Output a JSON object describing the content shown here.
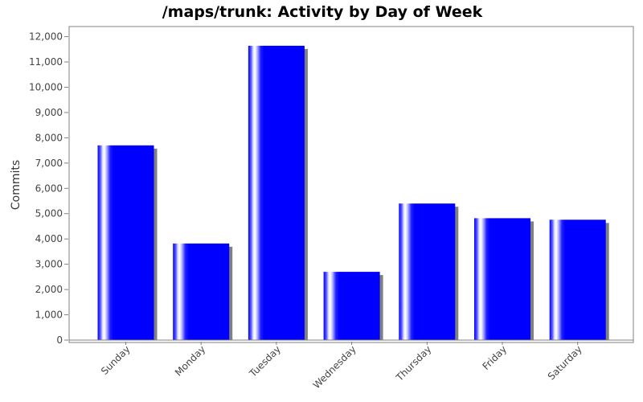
{
  "chart_data": {
    "type": "bar",
    "title": "/maps/trunk: Activity by Day of Week",
    "xlabel": "",
    "ylabel": "Commits",
    "categories": [
      "Sunday",
      "Monday",
      "Tuesday",
      "Wednesday",
      "Thursday",
      "Friday",
      "Saturday"
    ],
    "values": [
      7700,
      3820,
      11640,
      2700,
      5400,
      4820,
      4760
    ],
    "ylim": [
      0,
      12400
    ],
    "yticks": [
      0,
      1000,
      2000,
      3000,
      4000,
      5000,
      6000,
      7000,
      8000,
      9000,
      10000,
      11000,
      12000
    ],
    "ytick_labels": [
      "0",
      "1,000",
      "2,000",
      "3,000",
      "4,000",
      "5,000",
      "6,000",
      "7,000",
      "8,000",
      "9,000",
      "10,000",
      "11,000",
      "12,000"
    ],
    "grid": false,
    "legend": "none",
    "bar_color": "#0000ff",
    "shadow_color": "#808080"
  }
}
